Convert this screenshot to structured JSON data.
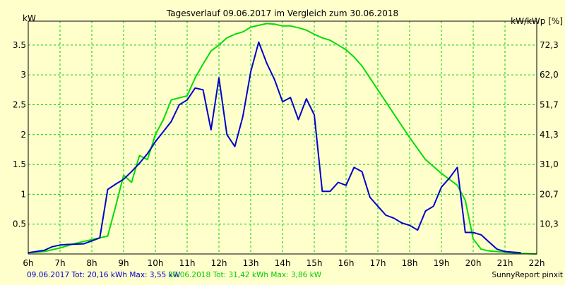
{
  "chart_data": {
    "type": "line",
    "title": "Tagesverlauf 09.06.2017 im Vergleich zum 30.06.2018",
    "ylabel_left": "kW",
    "ylabel_right": "kW/kWp [%]",
    "xlim": [
      6,
      22
    ],
    "ylim": [
      0,
      3.9
    ],
    "grid": true,
    "x_ticks": [
      6,
      7,
      8,
      9,
      10,
      11,
      12,
      13,
      14,
      15,
      16,
      17,
      18,
      19,
      20,
      21,
      22
    ],
    "x_tick_labels": [
      "6h",
      "7h",
      "8h",
      "9h",
      "10h",
      "11h",
      "12h",
      "13h",
      "14h",
      "15h",
      "16h",
      "17h",
      "18h",
      "19h",
      "20h",
      "21h",
      "22h"
    ],
    "y_left_ticks": [
      0.5,
      1,
      1.5,
      2,
      2.5,
      3,
      3.5
    ],
    "y_left_tick_labels": [
      "0.5",
      "1",
      "1.5",
      "2",
      "2.5",
      "3",
      "3.5"
    ],
    "y_right_ticks": [
      0.5,
      1,
      1.5,
      2,
      2.5,
      3,
      3.5
    ],
    "y_right_tick_labels": [
      "10,3",
      "20,7",
      "31,0",
      "41,3",
      "51,7",
      "62,0",
      "72,3"
    ],
    "series": [
      {
        "color": "#0000cc",
        "x": [
          6.0,
          6.5,
          6.75,
          7.0,
          7.25,
          7.75,
          8.0,
          8.25,
          8.5,
          8.75,
          9.0,
          9.25,
          9.5,
          9.75,
          10.0,
          10.25,
          10.5,
          10.75,
          11.0,
          11.25,
          11.5,
          11.75,
          12.0,
          12.25,
          12.5,
          12.75,
          13.0,
          13.25,
          13.5,
          13.75,
          14.0,
          14.25,
          14.5,
          14.75,
          15.0,
          15.25,
          15.5,
          15.75,
          16.0,
          16.25,
          16.5,
          16.75,
          17.0,
          17.25,
          17.5,
          17.75,
          18.0,
          18.25,
          18.5,
          18.75,
          19.0,
          19.25,
          19.5,
          19.75,
          20.0,
          20.25,
          20.5,
          20.75,
          21.0,
          21.5
        ],
        "y": [
          0.02,
          0.06,
          0.12,
          0.15,
          0.16,
          0.17,
          0.22,
          0.27,
          1.08,
          1.17,
          1.25,
          1.38,
          1.52,
          1.68,
          1.88,
          2.05,
          2.22,
          2.5,
          2.58,
          2.78,
          2.75,
          2.08,
          2.95,
          2.0,
          1.8,
          2.3,
          3.05,
          3.55,
          3.2,
          2.92,
          2.55,
          2.62,
          2.25,
          2.6,
          2.33,
          1.05,
          1.05,
          1.2,
          1.15,
          1.45,
          1.38,
          0.95,
          0.8,
          0.65,
          0.6,
          0.52,
          0.48,
          0.4,
          0.72,
          0.8,
          1.12,
          1.27,
          1.45,
          0.36,
          0.36,
          0.32,
          0.2,
          0.08,
          0.04,
          0.02
        ]
      },
      {
        "color": "#00dd00",
        "x": [
          6.0,
          6.5,
          7.0,
          7.5,
          8.0,
          8.5,
          8.75,
          9.0,
          9.25,
          9.5,
          9.75,
          10.0,
          10.25,
          10.5,
          11.0,
          11.25,
          11.5,
          11.75,
          12.0,
          12.25,
          12.5,
          12.75,
          13.0,
          13.25,
          13.5,
          13.75,
          14.0,
          14.25,
          14.5,
          14.75,
          15.0,
          15.25,
          15.5,
          15.75,
          16.0,
          16.25,
          16.5,
          16.75,
          17.0,
          17.5,
          18.0,
          18.5,
          19.0,
          19.25,
          19.5,
          19.75,
          20.0,
          20.25,
          20.5,
          21.0,
          21.5,
          22.0
        ],
        "y": [
          0.02,
          0.04,
          0.1,
          0.18,
          0.24,
          0.3,
          0.8,
          1.32,
          1.2,
          1.65,
          1.58,
          2.0,
          2.25,
          2.58,
          2.65,
          2.95,
          3.18,
          3.4,
          3.5,
          3.62,
          3.68,
          3.72,
          3.8,
          3.83,
          3.86,
          3.85,
          3.82,
          3.82,
          3.79,
          3.75,
          3.68,
          3.62,
          3.58,
          3.5,
          3.42,
          3.3,
          3.15,
          2.95,
          2.75,
          2.35,
          1.95,
          1.58,
          1.35,
          1.25,
          1.15,
          0.9,
          0.25,
          0.08,
          0.05,
          0.03,
          0.01,
          0.0
        ]
      }
    ],
    "footer": {
      "line1": "09.06.2017 Tot: 20,16 kWh Max: 3,55 kW",
      "line2": "30.06.2018 Tot: 31,42 kWh Max: 3,86 kW",
      "brand": "SunnyReport pinxit"
    },
    "colors": {
      "background": "#ffffcc",
      "plot_background": "#ffffcc",
      "grid": "#00cc00",
      "line1": "#0000cc",
      "line2": "#00dd00",
      "text": "#000000"
    }
  }
}
